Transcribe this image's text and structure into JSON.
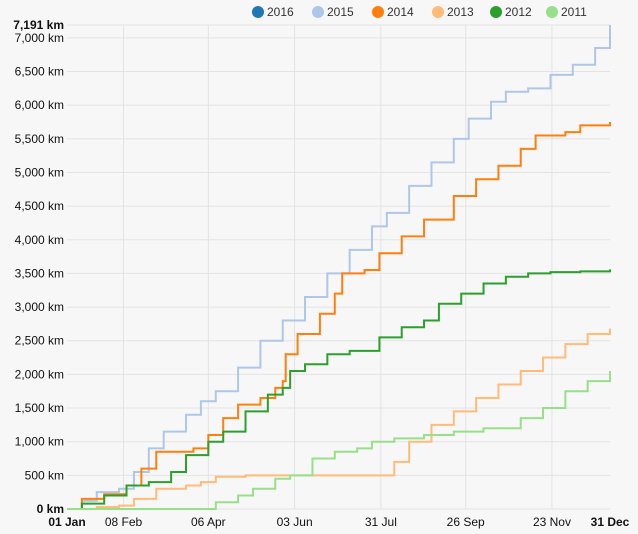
{
  "chart_data": {
    "type": "line",
    "title": "",
    "xlabel": "",
    "ylabel": "",
    "ylim": [
      0,
      7191
    ],
    "xlim_days": [
      0,
      365
    ],
    "x_tick_labels": [
      "01 Jan",
      "08 Feb",
      "06 Apr",
      "03 Jun",
      "31 Jul",
      "26 Sep",
      "23 Nov",
      "31 Dec"
    ],
    "x_tick_days": [
      0,
      38,
      95,
      153,
      211,
      268,
      326,
      365
    ],
    "y_tick_values": [
      0,
      500,
      1000,
      1500,
      2000,
      2500,
      3000,
      3500,
      4000,
      4500,
      5000,
      5500,
      6000,
      6500,
      7000,
      7191
    ],
    "y_tick_labels": [
      "0 km",
      "500 km",
      "1,000 km",
      "1,500 km",
      "2,000 km",
      "2,500 km",
      "3,000 km",
      "3,500 km",
      "4,000 km",
      "4,500 km",
      "5,000 km",
      "5,500 km",
      "6,000 km",
      "6,500 km",
      "7,000 km",
      "7,191 km"
    ],
    "grid": true,
    "legend_position": "top-right",
    "series": [
      {
        "name": "2016",
        "color": "#1f77b4",
        "points": []
      },
      {
        "name": "2015",
        "color": "#aec7e8",
        "points": [
          [
            0,
            0
          ],
          [
            10,
            120
          ],
          [
            20,
            250
          ],
          [
            35,
            300
          ],
          [
            45,
            550
          ],
          [
            55,
            900
          ],
          [
            65,
            1150
          ],
          [
            80,
            1400
          ],
          [
            90,
            1600
          ],
          [
            100,
            1750
          ],
          [
            115,
            2100
          ],
          [
            130,
            2500
          ],
          [
            145,
            2800
          ],
          [
            160,
            3150
          ],
          [
            175,
            3500
          ],
          [
            190,
            3850
          ],
          [
            205,
            4200
          ],
          [
            215,
            4400
          ],
          [
            230,
            4800
          ],
          [
            245,
            5150
          ],
          [
            260,
            5500
          ],
          [
            270,
            5800
          ],
          [
            285,
            6050
          ],
          [
            295,
            6200
          ],
          [
            310,
            6250
          ],
          [
            325,
            6450
          ],
          [
            340,
            6600
          ],
          [
            355,
            6850
          ],
          [
            365,
            7191
          ]
        ]
      },
      {
        "name": "2014",
        "color": "#ff7f0e",
        "points": [
          [
            0,
            0
          ],
          [
            10,
            150
          ],
          [
            25,
            220
          ],
          [
            40,
            350
          ],
          [
            50,
            600
          ],
          [
            60,
            850
          ],
          [
            75,
            850
          ],
          [
            85,
            900
          ],
          [
            95,
            1100
          ],
          [
            105,
            1350
          ],
          [
            115,
            1550
          ],
          [
            130,
            1650
          ],
          [
            140,
            1800
          ],
          [
            145,
            1900
          ],
          [
            147,
            2300
          ],
          [
            155,
            2600
          ],
          [
            170,
            2900
          ],
          [
            180,
            3200
          ],
          [
            185,
            3500
          ],
          [
            200,
            3550
          ],
          [
            210,
            3800
          ],
          [
            225,
            4050
          ],
          [
            240,
            4300
          ],
          [
            260,
            4650
          ],
          [
            275,
            4900
          ],
          [
            290,
            5100
          ],
          [
            305,
            5350
          ],
          [
            315,
            5550
          ],
          [
            335,
            5600
          ],
          [
            345,
            5700
          ],
          [
            365,
            5750
          ]
        ]
      },
      {
        "name": "2013",
        "color": "#ffbb78",
        "points": [
          [
            0,
            0
          ],
          [
            20,
            30
          ],
          [
            35,
            50
          ],
          [
            45,
            150
          ],
          [
            60,
            300
          ],
          [
            80,
            350
          ],
          [
            90,
            400
          ],
          [
            100,
            480
          ],
          [
            120,
            500
          ],
          [
            150,
            500
          ],
          [
            180,
            500
          ],
          [
            205,
            500
          ],
          [
            220,
            700
          ],
          [
            230,
            1000
          ],
          [
            245,
            1250
          ],
          [
            260,
            1450
          ],
          [
            275,
            1650
          ],
          [
            290,
            1850
          ],
          [
            305,
            2050
          ],
          [
            320,
            2250
          ],
          [
            335,
            2450
          ],
          [
            350,
            2600
          ],
          [
            365,
            2680
          ]
        ]
      },
      {
        "name": "2012",
        "color": "#2ca02c",
        "points": [
          [
            0,
            0
          ],
          [
            10,
            80
          ],
          [
            25,
            200
          ],
          [
            40,
            350
          ],
          [
            55,
            400
          ],
          [
            70,
            550
          ],
          [
            80,
            800
          ],
          [
            95,
            1000
          ],
          [
            105,
            1150
          ],
          [
            120,
            1450
          ],
          [
            135,
            1700
          ],
          [
            145,
            1800
          ],
          [
            150,
            2050
          ],
          [
            160,
            2150
          ],
          [
            175,
            2300
          ],
          [
            190,
            2350
          ],
          [
            200,
            2350
          ],
          [
            210,
            2550
          ],
          [
            225,
            2700
          ],
          [
            240,
            2800
          ],
          [
            250,
            3050
          ],
          [
            265,
            3200
          ],
          [
            280,
            3350
          ],
          [
            295,
            3450
          ],
          [
            310,
            3500
          ],
          [
            325,
            3520
          ],
          [
            345,
            3530
          ],
          [
            365,
            3560
          ]
        ]
      },
      {
        "name": "2011",
        "color": "#98df8a",
        "points": [
          [
            0,
            0
          ],
          [
            20,
            0
          ],
          [
            50,
            0
          ],
          [
            90,
            0
          ],
          [
            100,
            100
          ],
          [
            115,
            200
          ],
          [
            125,
            300
          ],
          [
            140,
            450
          ],
          [
            150,
            500
          ],
          [
            165,
            750
          ],
          [
            180,
            850
          ],
          [
            195,
            900
          ],
          [
            205,
            1000
          ],
          [
            220,
            1050
          ],
          [
            240,
            1100
          ],
          [
            260,
            1150
          ],
          [
            280,
            1200
          ],
          [
            295,
            1200
          ],
          [
            305,
            1350
          ],
          [
            320,
            1500
          ],
          [
            335,
            1750
          ],
          [
            350,
            1900
          ],
          [
            365,
            2050
          ]
        ]
      }
    ]
  }
}
